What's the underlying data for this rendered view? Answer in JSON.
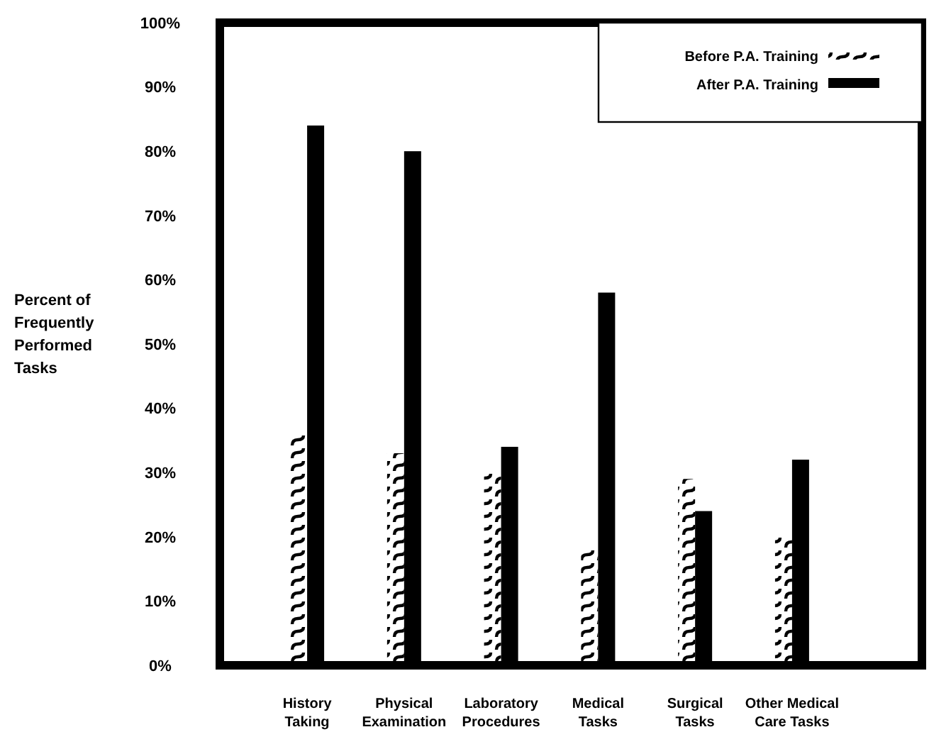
{
  "chart_data": {
    "type": "bar",
    "ylabel": "Percent of Frequently Performed Tasks",
    "categories": [
      "History Taking",
      "Physical Examination",
      "Laboratory Procedures",
      "Medical Tasks",
      "Surgical Tasks",
      "Other Medical Care Tasks"
    ],
    "series": [
      {
        "name": "Before P.A. Training",
        "color": "#000000",
        "values": [
          36,
          33,
          30,
          18,
          29,
          20
        ]
      },
      {
        "name": "After P.A. Training",
        "color": "#000000",
        "values": [
          84,
          80,
          34,
          58,
          24,
          32
        ]
      }
    ],
    "ylim": [
      0,
      100
    ],
    "yticks": [
      {
        "value": 0,
        "label": "0%"
      },
      {
        "value": 10,
        "label": "10%"
      },
      {
        "value": 20,
        "label": "20%"
      },
      {
        "value": 30,
        "label": "30%"
      },
      {
        "value": 40,
        "label": "40%"
      },
      {
        "value": 50,
        "label": "50%"
      },
      {
        "value": 60,
        "label": "60%"
      },
      {
        "value": 70,
        "label": "70%"
      },
      {
        "value": 80,
        "label": "80%"
      },
      {
        "value": 90,
        "label": "90%"
      },
      {
        "value": 100,
        "label": "100%"
      }
    ],
    "legend": "top right",
    "grid": false
  }
}
